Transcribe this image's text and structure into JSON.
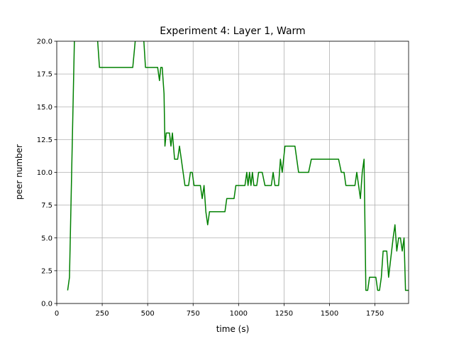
{
  "chart_data": {
    "type": "line",
    "title": "Experiment 4: Layer 1, Warm",
    "xlabel": "time (s)",
    "ylabel": "peer number",
    "x": [
      60,
      70,
      100,
      215,
      235,
      418,
      445,
      470,
      488,
      555,
      565,
      572,
      580,
      590,
      595,
      602,
      620,
      628,
      636,
      648,
      665,
      675,
      705,
      725,
      735,
      745,
      755,
      790,
      800,
      810,
      820,
      830,
      840,
      925,
      935,
      975,
      985,
      1035,
      1045,
      1052,
      1060,
      1068,
      1076,
      1084,
      1100,
      1110,
      1130,
      1145,
      1180,
      1190,
      1200,
      1220,
      1230,
      1240,
      1255,
      1310,
      1330,
      1385,
      1400,
      1550,
      1565,
      1580,
      1590,
      1640,
      1650,
      1670,
      1680,
      1690,
      1700,
      1710,
      1720,
      1755,
      1765,
      1775,
      1785,
      1795,
      1815,
      1825,
      1850,
      1860,
      1870,
      1880,
      1890,
      1900,
      1910,
      1918,
      1935
    ],
    "values": [
      1,
      2,
      22,
      22,
      18,
      18,
      22,
      22,
      18,
      18,
      17,
      18,
      18,
      16,
      12,
      13,
      13,
      12,
      13,
      11,
      11,
      12,
      9,
      9,
      10,
      10,
      9,
      9,
      8,
      9,
      7,
      6,
      7,
      7,
      8,
      8,
      9,
      9,
      10,
      9,
      10,
      9,
      10,
      9,
      9,
      10,
      10,
      9,
      9,
      10,
      9,
      9,
      11,
      10,
      12,
      12,
      10,
      10,
      11,
      11,
      10,
      10,
      9,
      9,
      10,
      8,
      10,
      11,
      1,
      1,
      2,
      2,
      1,
      1,
      2,
      4,
      4,
      2,
      5,
      6,
      4,
      5,
      5,
      4,
      5,
      1,
      1
    ],
    "color": "#008000",
    "xlim": [
      0,
      1935
    ],
    "ylim": [
      0,
      20
    ],
    "xticks": [
      0,
      250,
      500,
      750,
      1000,
      1250,
      1500,
      1750
    ],
    "yticks": [
      {
        "value": 0,
        "label": "0.0"
      },
      {
        "value": 2.5,
        "label": "2.5"
      },
      {
        "value": 5,
        "label": "5.0"
      },
      {
        "value": 7.5,
        "label": "7.5"
      },
      {
        "value": 10,
        "label": "10.0"
      },
      {
        "value": 12.5,
        "label": "12.5"
      },
      {
        "value": 15,
        "label": "15.0"
      },
      {
        "value": 17.5,
        "label": "17.5"
      },
      {
        "value": 20,
        "label": "20.0"
      }
    ],
    "grid": true
  }
}
